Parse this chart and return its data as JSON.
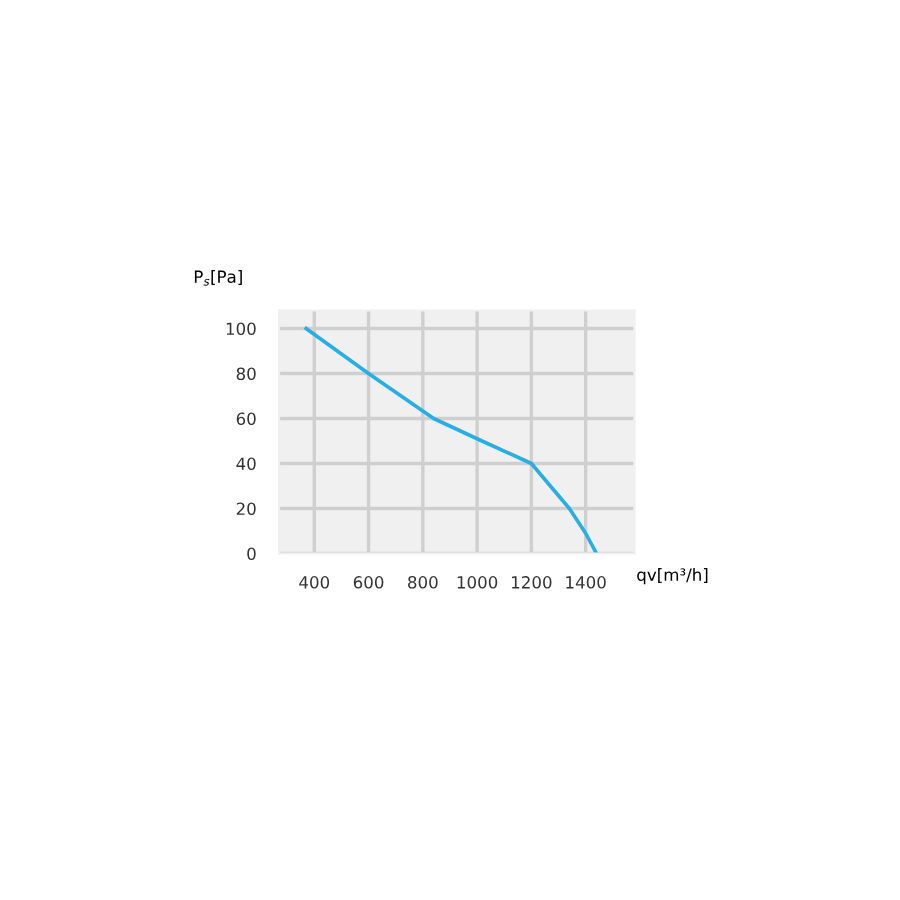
{
  "chart_data": {
    "type": "line",
    "xlabel": "qv[m³/h]",
    "ylabel": "P$_{s}$[Pa]",
    "x": [
      370,
      600,
      840,
      1000,
      1200,
      1340,
      1400,
      1440
    ],
    "series": [
      {
        "color": "#29aee4",
        "values": [
          100,
          80,
          60,
          51,
          40,
          20,
          9,
          0
        ]
      }
    ],
    "xlim": [
      270,
      1580
    ],
    "ylim": [
      0,
      108
    ],
    "xticks": [
      400,
      600,
      800,
      1000,
      1200,
      1400
    ],
    "yticks": [
      0,
      20,
      40,
      60,
      80,
      100
    ],
    "grid": true
  }
}
